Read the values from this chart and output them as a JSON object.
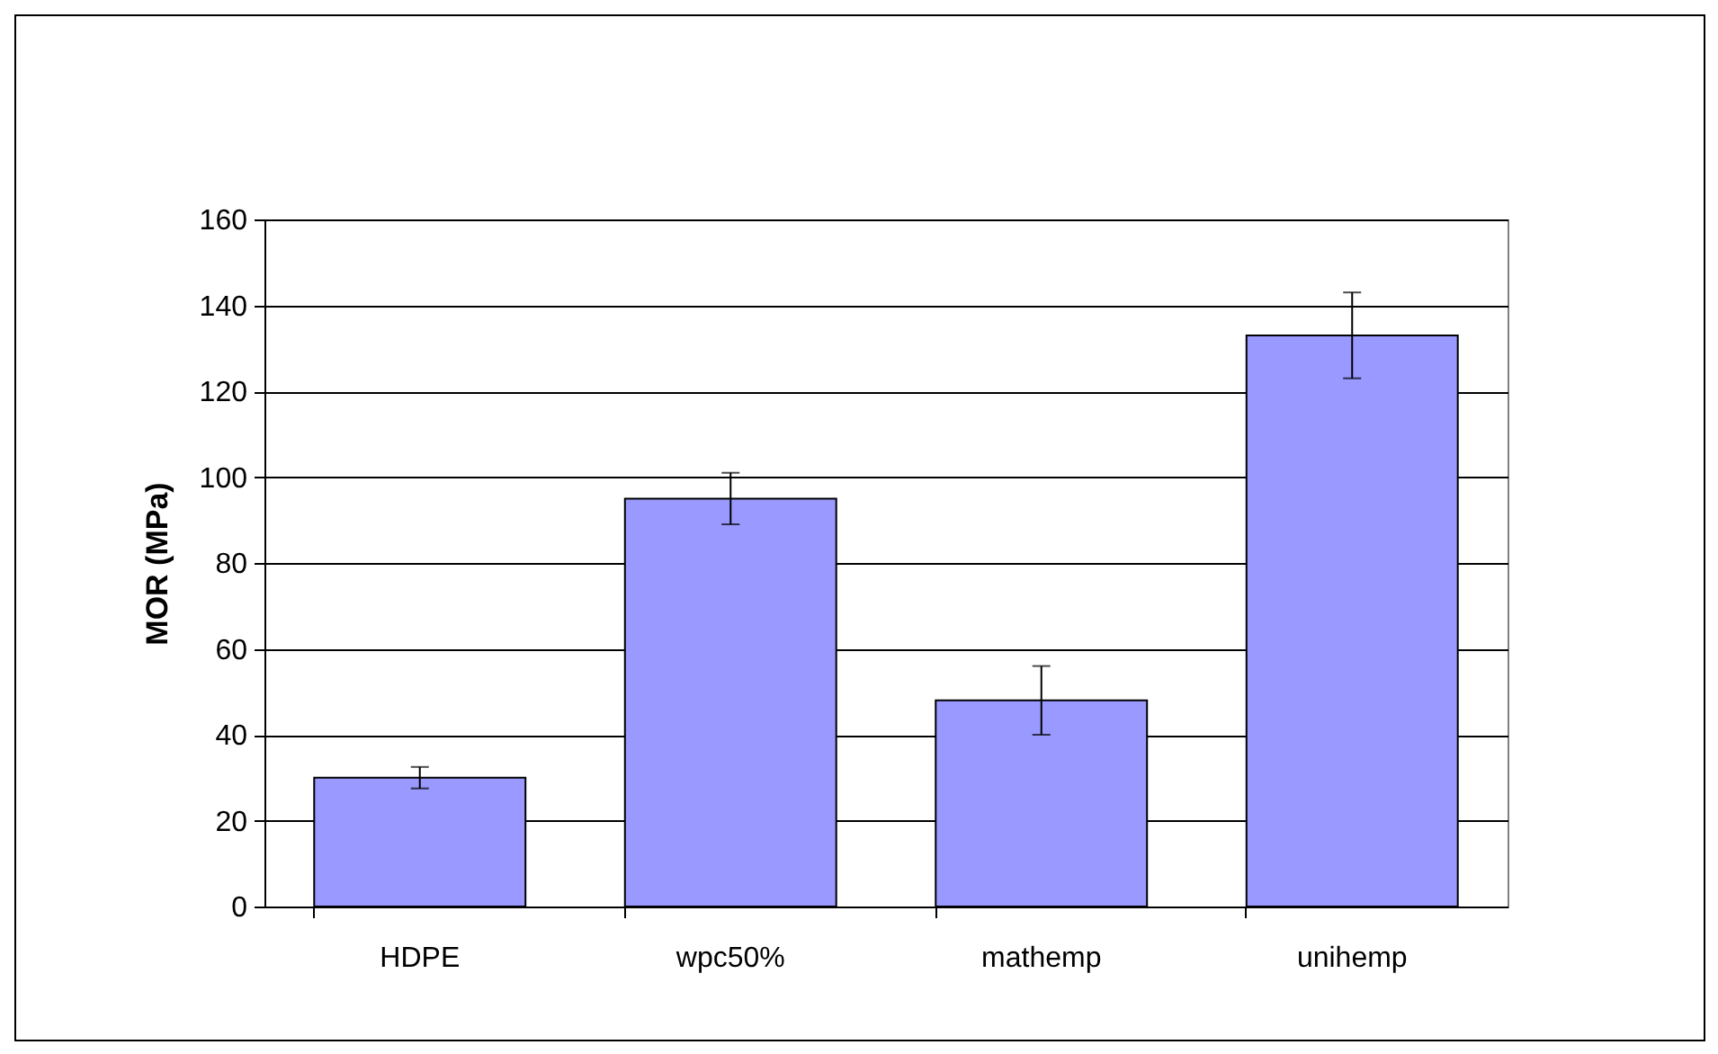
{
  "chart_data": {
    "type": "bar",
    "ylabel": "MOR (MPa)",
    "categories": [
      "HDPE",
      "wpc50%",
      "mathemp",
      "unihemp"
    ],
    "values": [
      30,
      95,
      48,
      133
    ],
    "errors": [
      2.5,
      6,
      8,
      10
    ],
    "color": "#9999ff",
    "ylim": [
      0,
      160
    ],
    "yticks": [
      0,
      20,
      40,
      60,
      80,
      100,
      120,
      140,
      160
    ],
    "grid": "y"
  }
}
